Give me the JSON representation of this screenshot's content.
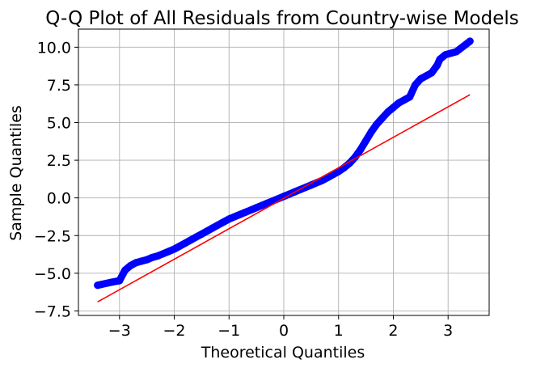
{
  "chart_data": {
    "type": "scatter",
    "title": "Q-Q Plot of All Residuals from Country-wise Models",
    "xlabel": "Theoretical Quantiles",
    "ylabel": "Sample Quantiles",
    "xlim": [
      -3.75,
      3.75
    ],
    "ylim": [
      -7.8,
      11.2
    ],
    "grid": true,
    "xticks": [
      -3,
      -2,
      -1,
      0,
      1,
      2,
      3
    ],
    "xtick_labels": [
      "−3",
      "−2",
      "−1",
      "0",
      "1",
      "2",
      "3"
    ],
    "yticks": [
      -7.5,
      -5.0,
      -2.5,
      0.0,
      2.5,
      5.0,
      7.5,
      10.0
    ],
    "ytick_labels": [
      "−7.5",
      "−5.0",
      "−2.5",
      "0.0",
      "2.5",
      "5.0",
      "7.5",
      "10.0"
    ],
    "series": [
      {
        "kind": "points",
        "color": "#0000ff",
        "x": [
          -3.4,
          -3.15,
          -3.0,
          -2.9,
          -2.8,
          -2.7,
          -2.6,
          -2.5,
          -2.4,
          -2.3,
          -2.2,
          -2.1,
          -2.0,
          -1.9,
          -1.8,
          -1.7,
          -1.6,
          -1.5,
          -1.4,
          -1.3,
          -1.2,
          -1.1,
          -1.0,
          -0.9,
          -0.8,
          -0.7,
          -0.6,
          -0.5,
          -0.4,
          -0.3,
          -0.2,
          -0.1,
          0.0,
          0.1,
          0.2,
          0.3,
          0.4,
          0.5,
          0.6,
          0.7,
          0.8,
          0.9,
          1.0,
          1.1,
          1.2,
          1.3,
          1.4,
          1.5,
          1.6,
          1.7,
          1.8,
          1.9,
          2.0,
          2.1,
          2.2,
          2.3,
          2.4,
          2.5,
          2.6,
          2.7,
          2.8,
          2.85,
          2.95,
          3.15,
          3.4
        ],
        "y": [
          -5.8,
          -5.6,
          -5.5,
          -4.8,
          -4.5,
          -4.3,
          -4.2,
          -4.1,
          -3.95,
          -3.85,
          -3.7,
          -3.55,
          -3.4,
          -3.2,
          -3.0,
          -2.8,
          -2.6,
          -2.4,
          -2.2,
          -2.0,
          -1.8,
          -1.6,
          -1.4,
          -1.25,
          -1.1,
          -0.95,
          -0.8,
          -0.65,
          -0.5,
          -0.35,
          -0.2,
          -0.05,
          0.1,
          0.25,
          0.4,
          0.55,
          0.7,
          0.85,
          1.0,
          1.15,
          1.35,
          1.55,
          1.75,
          2.0,
          2.3,
          2.7,
          3.2,
          3.8,
          4.4,
          4.9,
          5.3,
          5.7,
          6.0,
          6.3,
          6.5,
          6.7,
          7.5,
          7.9,
          8.1,
          8.3,
          8.8,
          9.2,
          9.5,
          9.7,
          10.4
        ]
      },
      {
        "kind": "line",
        "color": "#ff0000",
        "x": [
          -3.4,
          3.4
        ],
        "y": [
          -6.9,
          6.85
        ]
      }
    ]
  }
}
